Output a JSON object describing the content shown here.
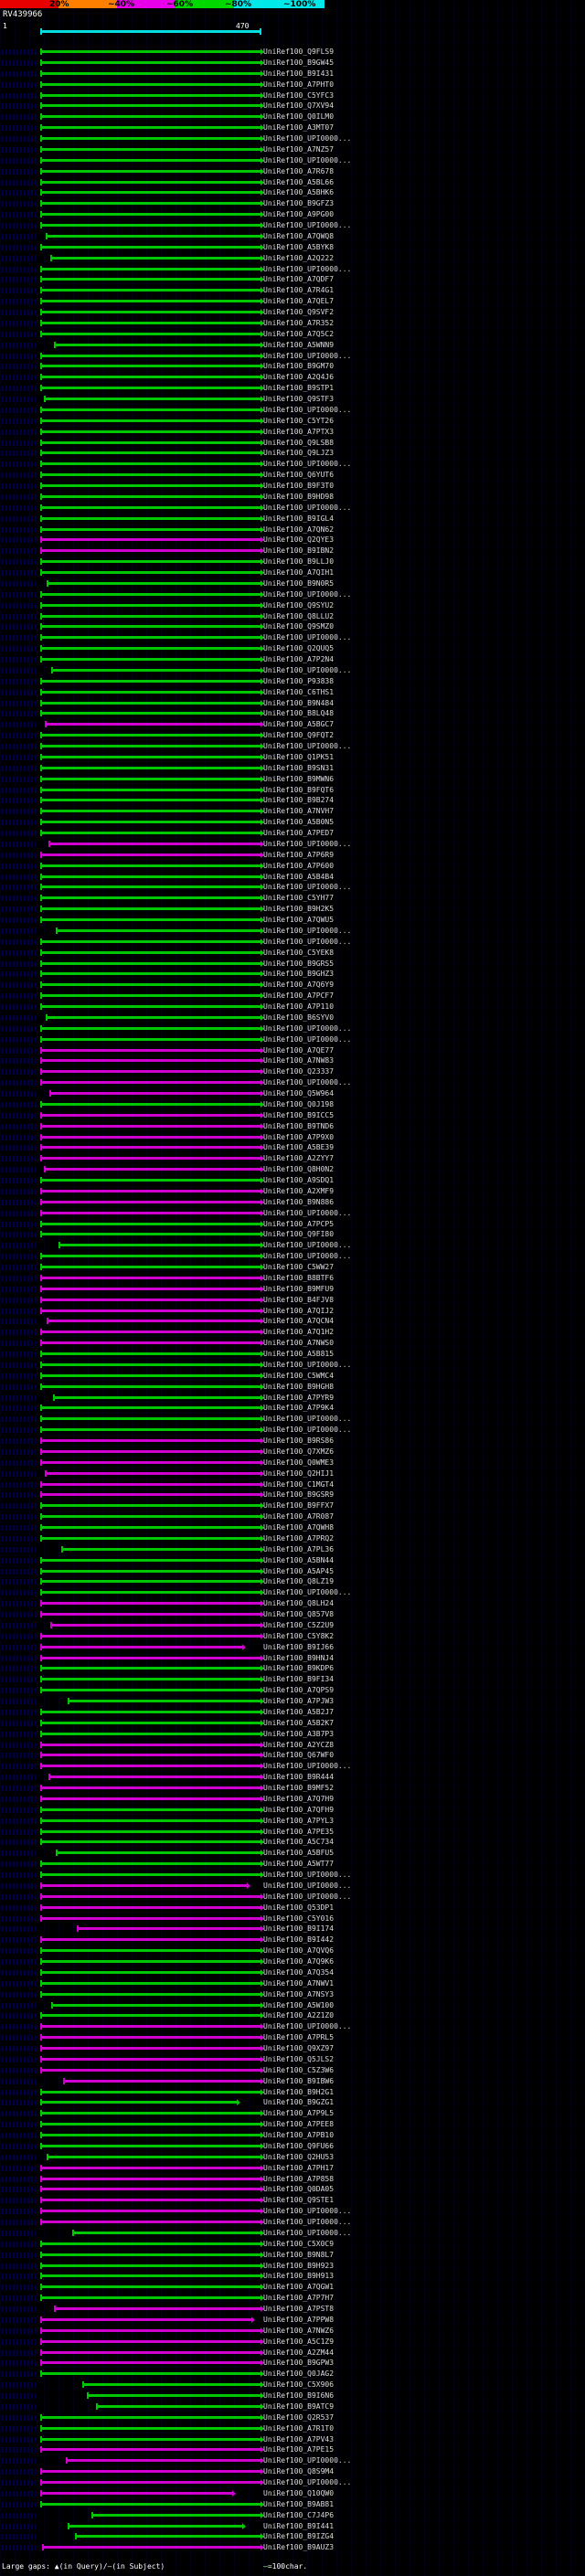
{
  "key": {
    "segments": [
      {
        "label": "20%",
        "color": "#e80000"
      },
      {
        "label": "~40%",
        "color": "#ff8000"
      },
      {
        "label": "~60%",
        "color": "#e800e8"
      },
      {
        "label": "~80%",
        "color": "#00d800"
      },
      {
        "label": "~100%",
        "color": "#00e8e8"
      }
    ]
  },
  "query": {
    "name": "RV439966",
    "start": "1",
    "end": "470",
    "color": "#00e0e0"
  },
  "footer": {
    "gaps_legend": "Large gaps: ▲(in Query)/—(in Subject)",
    "scale_dash": "—",
    "scale_legend": "=100char."
  },
  "chart_data": {
    "type": "bar",
    "orientation": "horizontal",
    "title": "RV439966",
    "x_range": [
      1,
      470
    ],
    "legend_position": "top",
    "label_prefix": "UniRef100_",
    "color_map": {
      "g": "#00c800",
      "m": "#d000d0"
    },
    "identity_buckets": {
      "g": "~80% identity",
      "m": "~60% identity"
    },
    "hits": [
      [
        "Q9FLS9",
        1,
        470,
        "g"
      ],
      [
        "B9GW45",
        1,
        470,
        "g"
      ],
      [
        "B9I431",
        1,
        470,
        "g"
      ],
      [
        "A7PHT0",
        1,
        470,
        "g"
      ],
      [
        "C5YFC3",
        1,
        470,
        "g"
      ],
      [
        "Q7XV94",
        1,
        470,
        "g"
      ],
      [
        "Q0ILM0",
        1,
        470,
        "g"
      ],
      [
        "A3MT07",
        1,
        470,
        "g"
      ],
      [
        "UPI0000...",
        1,
        470,
        "g"
      ],
      [
        "A7NZ57",
        1,
        470,
        "g"
      ],
      [
        "UPI0000...",
        1,
        470,
        "g"
      ],
      [
        "A7R678",
        1,
        470,
        "g"
      ],
      [
        "A5BL66",
        1,
        470,
        "g"
      ],
      [
        "A5BHK6",
        1,
        470,
        "g"
      ],
      [
        "B9GFZ3",
        1,
        470,
        "g"
      ],
      [
        "A9PG00",
        1,
        470,
        "g"
      ],
      [
        "UPI0000...",
        1,
        470,
        "g"
      ],
      [
        "A7QWQ8",
        12,
        470,
        "g"
      ],
      [
        "A5BYK8",
        1,
        470,
        "g"
      ],
      [
        "A2Q222",
        22,
        470,
        "g"
      ],
      [
        "UPI0000...",
        1,
        470,
        "g"
      ],
      [
        "A7QDF7",
        1,
        470,
        "g"
      ],
      [
        "A7R4G1",
        1,
        470,
        "g"
      ],
      [
        "A7QEL7",
        1,
        470,
        "g"
      ],
      [
        "Q9SVF2",
        1,
        470,
        "g"
      ],
      [
        "A7R352",
        1,
        470,
        "g"
      ],
      [
        "A7Q5C2",
        1,
        470,
        "g"
      ],
      [
        "A5WNN9",
        30,
        470,
        "g"
      ],
      [
        "UPI0000...",
        1,
        470,
        "g"
      ],
      [
        "B9GM70",
        1,
        470,
        "g"
      ],
      [
        "A2Q4J6",
        1,
        470,
        "g"
      ],
      [
        "B9STP1",
        1,
        470,
        "g"
      ],
      [
        "Q9STF3",
        8,
        470,
        "g"
      ],
      [
        "UPI0000...",
        1,
        470,
        "g"
      ],
      [
        "C5YT26",
        1,
        470,
        "g"
      ],
      [
        "A7PTX3",
        1,
        470,
        "g"
      ],
      [
        "Q9LSB8",
        1,
        470,
        "g"
      ],
      [
        "Q9LJZ3",
        1,
        470,
        "g"
      ],
      [
        "UPI0000...",
        1,
        470,
        "g"
      ],
      [
        "Q6YUT6",
        1,
        470,
        "g"
      ],
      [
        "B9F3T0",
        1,
        470,
        "g"
      ],
      [
        "B9HD98",
        1,
        470,
        "g"
      ],
      [
        "UPI0000...",
        1,
        470,
        "g"
      ],
      [
        "B9IGL4",
        1,
        470,
        "g"
      ],
      [
        "A7QN62",
        1,
        470,
        "g"
      ],
      [
        "Q2QYE3",
        1,
        470,
        "m"
      ],
      [
        "B9IBN2",
        1,
        470,
        "m"
      ],
      [
        "B9LLJ0",
        1,
        470,
        "g"
      ],
      [
        "A7QIH1",
        1,
        470,
        "g"
      ],
      [
        "B9N0R5",
        15,
        470,
        "g"
      ],
      [
        "UPI0000...",
        1,
        470,
        "g"
      ],
      [
        "Q9SYU2",
        1,
        470,
        "g"
      ],
      [
        "Q8LLU2",
        1,
        470,
        "g"
      ],
      [
        "Q9SMZ0",
        1,
        470,
        "g"
      ],
      [
        "UPI0000...",
        1,
        470,
        "g"
      ],
      [
        "Q2QUQ5",
        1,
        470,
        "g"
      ],
      [
        "A7P2N4",
        1,
        470,
        "g"
      ],
      [
        "UPI0000...",
        25,
        470,
        "g"
      ],
      [
        "P93838",
        1,
        470,
        "g"
      ],
      [
        "C6THS1",
        1,
        470,
        "g"
      ],
      [
        "B9N484",
        1,
        470,
        "g"
      ],
      [
        "B8LQ48",
        1,
        470,
        "g"
      ],
      [
        "A5BGC7",
        10,
        470,
        "m"
      ],
      [
        "Q9FQT2",
        1,
        470,
        "g"
      ],
      [
        "UPI0000...",
        1,
        470,
        "g"
      ],
      [
        "Q1PK51",
        1,
        470,
        "g"
      ],
      [
        "B9SN31",
        1,
        470,
        "g"
      ],
      [
        "B9MWN6",
        1,
        470,
        "g"
      ],
      [
        "B9FQT6",
        1,
        470,
        "g"
      ],
      [
        "B9B274",
        1,
        470,
        "g"
      ],
      [
        "A7NVH7",
        1,
        470,
        "g"
      ],
      [
        "A5B0N5",
        1,
        470,
        "g"
      ],
      [
        "A7PED7",
        1,
        470,
        "g"
      ],
      [
        "UPI0000...",
        18,
        470,
        "m"
      ],
      [
        "A7P6R9",
        1,
        470,
        "m"
      ],
      [
        "A7P600",
        1,
        470,
        "g"
      ],
      [
        "A5B4B4",
        1,
        470,
        "g"
      ],
      [
        "UPI0000...",
        1,
        470,
        "g"
      ],
      [
        "C5YH77",
        1,
        470,
        "g"
      ],
      [
        "B9H2K5",
        1,
        470,
        "g"
      ],
      [
        "A7QWU5",
        1,
        470,
        "g"
      ],
      [
        "UPI0000...",
        35,
        470,
        "g"
      ],
      [
        "UPI0000...",
        1,
        470,
        "g"
      ],
      [
        "C5YEK8",
        1,
        470,
        "g"
      ],
      [
        "B9GRS5",
        1,
        470,
        "g"
      ],
      [
        "B9GHZ3",
        1,
        470,
        "g"
      ],
      [
        "A7Q6Y9",
        1,
        470,
        "g"
      ],
      [
        "A7PCF7",
        1,
        470,
        "g"
      ],
      [
        "A7P110",
        1,
        470,
        "g"
      ],
      [
        "B6SYV0",
        12,
        470,
        "g"
      ],
      [
        "UPI0000...",
        1,
        470,
        "g"
      ],
      [
        "UPI0000...",
        1,
        470,
        "g"
      ],
      [
        "A7QE77",
        1,
        470,
        "m"
      ],
      [
        "A7NW83",
        1,
        470,
        "m"
      ],
      [
        "Q23337",
        1,
        470,
        "m"
      ],
      [
        "UPI0000...",
        1,
        470,
        "m"
      ],
      [
        "Q5W964",
        20,
        470,
        "m"
      ],
      [
        "Q0J198",
        1,
        470,
        "g"
      ],
      [
        "B9ICC5",
        1,
        470,
        "m"
      ],
      [
        "B9TND6",
        1,
        470,
        "m"
      ],
      [
        "A7P9X0",
        1,
        470,
        "m"
      ],
      [
        "A5BE39",
        1,
        470,
        "m"
      ],
      [
        "A2ZYY7",
        1,
        470,
        "m"
      ],
      [
        "Q8H0N2",
        8,
        470,
        "m"
      ],
      [
        "A9SDQ1",
        1,
        470,
        "g"
      ],
      [
        "A2XMF9",
        1,
        470,
        "m"
      ],
      [
        "B9N886",
        1,
        470,
        "m"
      ],
      [
        "UPI0000...",
        1,
        470,
        "m"
      ],
      [
        "A7PCP5",
        1,
        470,
        "g"
      ],
      [
        "Q9FI80",
        1,
        470,
        "g"
      ],
      [
        "UPI0000...",
        40,
        470,
        "g"
      ],
      [
        "UPI0000...",
        1,
        470,
        "g"
      ],
      [
        "C5WW27",
        1,
        470,
        "g"
      ],
      [
        "B8BTF6",
        1,
        470,
        "m"
      ],
      [
        "B9MFU9",
        1,
        470,
        "m"
      ],
      [
        "B4FJV8",
        1,
        470,
        "m"
      ],
      [
        "A7QIJ2",
        1,
        470,
        "m"
      ],
      [
        "A7QCN4",
        15,
        470,
        "m"
      ],
      [
        "A7Q1H2",
        1,
        470,
        "m"
      ],
      [
        "A7NWS0",
        1,
        470,
        "m"
      ],
      [
        "A5B815",
        1,
        470,
        "g"
      ],
      [
        "UPI0000...",
        1,
        470,
        "g"
      ],
      [
        "C5WMC4",
        1,
        470,
        "g"
      ],
      [
        "B9HGH8",
        1,
        470,
        "g"
      ],
      [
        "A7PYR9",
        28,
        470,
        "g"
      ],
      [
        "A7P9K4",
        1,
        470,
        "g"
      ],
      [
        "UPI0000...",
        1,
        470,
        "g"
      ],
      [
        "UPI0000...",
        1,
        470,
        "g"
      ],
      [
        "B9RS86",
        1,
        470,
        "m"
      ],
      [
        "Q7XMZ6",
        1,
        470,
        "m"
      ],
      [
        "Q0WME3",
        1,
        470,
        "m"
      ],
      [
        "Q2HIJ1",
        10,
        470,
        "m"
      ],
      [
        "C1MGT4",
        1,
        470,
        "m"
      ],
      [
        "B9GSR9",
        1,
        470,
        "m"
      ],
      [
        "B9FFX7",
        1,
        470,
        "g"
      ],
      [
        "A7R087",
        1,
        470,
        "g"
      ],
      [
        "A7QWH8",
        1,
        470,
        "g"
      ],
      [
        "A7PRQ2",
        1,
        470,
        "g"
      ],
      [
        "A7PL36",
        45,
        470,
        "g"
      ],
      [
        "A5BN44",
        1,
        470,
        "g"
      ],
      [
        "A5AP45",
        1,
        470,
        "g"
      ],
      [
        "Q8LZ19",
        1,
        470,
        "g"
      ],
      [
        "UPI0000...",
        1,
        470,
        "g"
      ],
      [
        "Q8LH24",
        1,
        470,
        "m"
      ],
      [
        "Q857V8",
        1,
        470,
        "m"
      ],
      [
        "C5Z2U9",
        22,
        470,
        "m"
      ],
      [
        "C5Y8K2",
        1,
        470,
        "m"
      ],
      [
        "B9IJ66",
        1,
        430,
        "m"
      ],
      [
        "B9HNJ4",
        1,
        470,
        "m"
      ],
      [
        "B9KDP6",
        1,
        470,
        "g"
      ],
      [
        "B9FI34",
        1,
        470,
        "g"
      ],
      [
        "A7QPS9",
        1,
        470,
        "g"
      ],
      [
        "A7PJW3",
        60,
        470,
        "g"
      ],
      [
        "A5B2J7",
        1,
        470,
        "g"
      ],
      [
        "A5B2K7",
        1,
        470,
        "g"
      ],
      [
        "A3B7P3",
        1,
        470,
        "g"
      ],
      [
        "A2YCZ8",
        1,
        470,
        "m"
      ],
      [
        "Q67WF0",
        1,
        470,
        "m"
      ],
      [
        "UPI0000...",
        1,
        470,
        "m"
      ],
      [
        "B9R444",
        18,
        470,
        "m"
      ],
      [
        "B9MF52",
        1,
        470,
        "m"
      ],
      [
        "A7Q7H9",
        1,
        470,
        "m"
      ],
      [
        "A7QFH9",
        1,
        470,
        "g"
      ],
      [
        "A7PYL3",
        1,
        470,
        "g"
      ],
      [
        "A7PE35",
        1,
        470,
        "g"
      ],
      [
        "A5C734",
        1,
        470,
        "g"
      ],
      [
        "A5BFU5",
        35,
        470,
        "g"
      ],
      [
        "A5WT77",
        1,
        470,
        "g"
      ],
      [
        "UPI0000...",
        1,
        470,
        "g"
      ],
      [
        "UPI0000...",
        1,
        440,
        "m"
      ],
      [
        "UPI0000...",
        1,
        470,
        "m"
      ],
      [
        "Q53DP1",
        1,
        470,
        "m"
      ],
      [
        "C5Y016",
        1,
        470,
        "m"
      ],
      [
        "B9I174",
        80,
        470,
        "m"
      ],
      [
        "B9I442",
        1,
        470,
        "m"
      ],
      [
        "A7QVQ6",
        1,
        470,
        "g"
      ],
      [
        "A7Q9K6",
        1,
        470,
        "g"
      ],
      [
        "A7Q354",
        1,
        470,
        "g"
      ],
      [
        "A7NWV1",
        1,
        470,
        "g"
      ],
      [
        "A7NSY3",
        1,
        470,
        "g"
      ],
      [
        "A5W100",
        25,
        470,
        "g"
      ],
      [
        "A2Z1Z0",
        1,
        470,
        "g"
      ],
      [
        "UPI0000...",
        1,
        470,
        "m"
      ],
      [
        "A7PRL5",
        1,
        470,
        "m"
      ],
      [
        "Q9XZ97",
        1,
        470,
        "m"
      ],
      [
        "Q5JLS2",
        1,
        470,
        "m"
      ],
      [
        "C5Z3W6",
        1,
        470,
        "m"
      ],
      [
        "B9IBW6",
        50,
        470,
        "m"
      ],
      [
        "B9H2G1",
        1,
        470,
        "g"
      ],
      [
        "B9GZG1",
        1,
        420,
        "g"
      ],
      [
        "A7P9L5",
        1,
        470,
        "g"
      ],
      [
        "A7PEE8",
        1,
        470,
        "g"
      ],
      [
        "A7PB10",
        1,
        470,
        "g"
      ],
      [
        "Q9FU66",
        1,
        470,
        "g"
      ],
      [
        "Q2HU53",
        15,
        470,
        "g"
      ],
      [
        "A7PH17",
        1,
        470,
        "m"
      ],
      [
        "A7P858",
        1,
        470,
        "m"
      ],
      [
        "Q0DA05",
        1,
        470,
        "m"
      ],
      [
        "Q9STE1",
        1,
        470,
        "m"
      ],
      [
        "UPI0000...",
        1,
        470,
        "m"
      ],
      [
        "UPI0000...",
        1,
        470,
        "m"
      ],
      [
        "UPI0000...",
        70,
        470,
        "g"
      ],
      [
        "C5X0C9",
        1,
        470,
        "g"
      ],
      [
        "B9N8L7",
        1,
        470,
        "g"
      ],
      [
        "B9H923",
        1,
        470,
        "g"
      ],
      [
        "B9H913",
        1,
        470,
        "g"
      ],
      [
        "A7QGW1",
        1,
        470,
        "g"
      ],
      [
        "A7P7H7",
        1,
        470,
        "g"
      ],
      [
        "A7PST8",
        30,
        470,
        "m"
      ],
      [
        "A7PPW8",
        1,
        450,
        "m"
      ],
      [
        "A7NWZ6",
        1,
        470,
        "m"
      ],
      [
        "A5C1Z9",
        1,
        470,
        "m"
      ],
      [
        "A2ZM44",
        1,
        470,
        "m"
      ],
      [
        "B9GPW3",
        1,
        470,
        "m"
      ],
      [
        "Q0JAG2",
        1,
        470,
        "g"
      ],
      [
        "C5X906",
        90,
        470,
        "g"
      ],
      [
        "B9I6N6",
        100,
        470,
        "g"
      ],
      [
        "B9ATC9",
        120,
        470,
        "g"
      ],
      [
        "Q2R537",
        1,
        470,
        "g"
      ],
      [
        "A7R1T0",
        1,
        470,
        "g"
      ],
      [
        "A7PV43",
        1,
        470,
        "g"
      ],
      [
        "A7PE15",
        1,
        470,
        "m"
      ],
      [
        "UPI0000...",
        55,
        470,
        "m"
      ],
      [
        "Q8S9M4",
        1,
        470,
        "m"
      ],
      [
        "UPI0000...",
        1,
        470,
        "m"
      ],
      [
        "Q10QW0",
        1,
        410,
        "m"
      ],
      [
        "B9AB81",
        1,
        470,
        "g"
      ],
      [
        "C7J4P6",
        110,
        470,
        "g"
      ],
      [
        "B9I441",
        60,
        430,
        "g"
      ],
      [
        "B9IZG4",
        75,
        470,
        "g"
      ],
      [
        "B9AUZ3",
        5,
        470,
        "m"
      ]
    ]
  }
}
